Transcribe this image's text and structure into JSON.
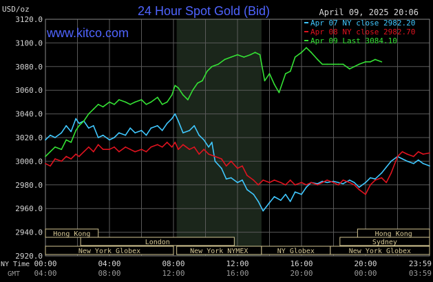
{
  "header": {
    "title": "24 Hour Spot Gold (Bid)",
    "unit": "USD/oz",
    "datetime": "April 09, 2025 20:06",
    "website": "www.kitco.com"
  },
  "colors": {
    "background": "#000000",
    "title": "#4f64ff",
    "website": "#4f64ff",
    "grid": "#5a5a5a",
    "text": "#d8d8d8",
    "apr07": "#40c8ff",
    "apr08": "#e0131f",
    "apr09": "#35e335",
    "session_shade": "#1b261b",
    "market_box": "#d6c895"
  },
  "chart_data": {
    "type": "line",
    "title": "24 Hour Spot Gold (Bid)",
    "ylabel": "USD/oz",
    "ylim": [
      2920,
      3120
    ],
    "y_ticks": [
      "3120.0",
      "3100.0",
      "3080.0",
      "3060.0",
      "3040.0",
      "3020.0",
      "3000.0",
      "2980.0",
      "2960.0",
      "2940.0",
      "2920.0"
    ],
    "y_tick_values": [
      3120,
      3100,
      3080,
      3060,
      3040,
      3020,
      3000,
      2980,
      2960,
      2940,
      2920
    ],
    "x_range_hours": [
      0,
      24
    ],
    "x_ticks_ny": [
      "00:00",
      "04:00",
      "08:00",
      "12:00",
      "16:00",
      "20:00",
      "23:59"
    ],
    "x_ticks_gmt": [
      "04:00",
      "08:00",
      "12:00",
      "16:00",
      "20:00",
      "00:00",
      "03:59"
    ],
    "x_tick_hours": [
      0,
      4,
      8,
      12,
      16,
      20,
      24
    ],
    "x_label_ny": "NY Time",
    "x_label_gmt": "GMT",
    "grid": true,
    "legend_position": "top-right",
    "shaded_session_hours": [
      8.2,
      13.5
    ],
    "series": [
      {
        "name": "Apr 07 NY close 2982.20",
        "color_key": "apr07",
        "points": [
          [
            0,
            3018
          ],
          [
            0.3,
            3022
          ],
          [
            0.6,
            3020
          ],
          [
            1,
            3024
          ],
          [
            1.3,
            3030
          ],
          [
            1.6,
            3025
          ],
          [
            1.9,
            3036
          ],
          [
            2.1,
            3032
          ],
          [
            2.4,
            3034
          ],
          [
            2.7,
            3028
          ],
          [
            3,
            3030
          ],
          [
            3.3,
            3020
          ],
          [
            3.6,
            3022
          ],
          [
            4,
            3018
          ],
          [
            4.3,
            3020
          ],
          [
            4.6,
            3024
          ],
          [
            5,
            3022
          ],
          [
            5.3,
            3028
          ],
          [
            5.6,
            3024
          ],
          [
            6,
            3026
          ],
          [
            6.3,
            3022
          ],
          [
            6.6,
            3028
          ],
          [
            7,
            3030
          ],
          [
            7.3,
            3026
          ],
          [
            7.6,
            3032
          ],
          [
            7.9,
            3036
          ],
          [
            8.1,
            3040
          ],
          [
            8.3,
            3034
          ],
          [
            8.6,
            3024
          ],
          [
            9,
            3026
          ],
          [
            9.3,
            3030
          ],
          [
            9.6,
            3022
          ],
          [
            9.9,
            3018
          ],
          [
            10.2,
            3012
          ],
          [
            10.4,
            3016
          ],
          [
            10.6,
            3000
          ],
          [
            11,
            2994
          ],
          [
            11.3,
            2985
          ],
          [
            11.6,
            2986
          ],
          [
            12,
            2982
          ],
          [
            12.3,
            2984
          ],
          [
            12.6,
            2976
          ],
          [
            13,
            2972
          ],
          [
            13.3,
            2966
          ],
          [
            13.6,
            2958
          ],
          [
            14,
            2965
          ],
          [
            14.3,
            2970
          ],
          [
            14.7,
            2967
          ],
          [
            15,
            2972
          ],
          [
            15.3,
            2966
          ],
          [
            15.6,
            2974
          ],
          [
            16,
            2972
          ],
          [
            16.3,
            2978
          ],
          [
            16.6,
            2982
          ],
          [
            17,
            2981
          ],
          [
            17.3,
            2983
          ],
          [
            17.6,
            2982
          ],
          [
            18,
            2983
          ],
          [
            18.3,
            2982
          ],
          [
            18.6,
            2981
          ],
          [
            19,
            2984
          ],
          [
            19.3,
            2982
          ],
          [
            19.6,
            2978
          ],
          [
            20,
            2982
          ],
          [
            20.3,
            2986
          ],
          [
            20.6,
            2985
          ],
          [
            21,
            2990
          ],
          [
            21.3,
            2995
          ],
          [
            21.6,
            3000
          ],
          [
            22,
            3004
          ],
          [
            22.3,
            3002
          ],
          [
            22.6,
            3000
          ],
          [
            23,
            2998
          ],
          [
            23.3,
            3001
          ],
          [
            23.6,
            2998
          ],
          [
            24,
            2996
          ]
        ]
      },
      {
        "name": "Apr 08 NY close 2982.70",
        "color_key": "apr08",
        "points": [
          [
            0,
            2998
          ],
          [
            0.3,
            2996
          ],
          [
            0.6,
            3002
          ],
          [
            1,
            3000
          ],
          [
            1.3,
            3004
          ],
          [
            1.6,
            3002
          ],
          [
            1.9,
            3006
          ],
          [
            2.1,
            3004
          ],
          [
            2.4,
            3008
          ],
          [
            2.7,
            3012
          ],
          [
            3,
            3008
          ],
          [
            3.3,
            3014
          ],
          [
            3.6,
            3010
          ],
          [
            4,
            3010
          ],
          [
            4.3,
            3012
          ],
          [
            4.6,
            3008
          ],
          [
            5,
            3012
          ],
          [
            5.3,
            3010
          ],
          [
            5.6,
            3008
          ],
          [
            6,
            3010
          ],
          [
            6.3,
            3008
          ],
          [
            6.6,
            3012
          ],
          [
            7,
            3014
          ],
          [
            7.3,
            3012
          ],
          [
            7.6,
            3016
          ],
          [
            7.9,
            3012
          ],
          [
            8.1,
            3016
          ],
          [
            8.3,
            3010
          ],
          [
            8.6,
            3014
          ],
          [
            9,
            3010
          ],
          [
            9.3,
            3012
          ],
          [
            9.6,
            3006
          ],
          [
            9.9,
            3010
          ],
          [
            10.2,
            3006
          ],
          [
            10.6,
            3004
          ],
          [
            11,
            3002
          ],
          [
            11.3,
            2996
          ],
          [
            11.6,
            3000
          ],
          [
            12,
            2994
          ],
          [
            12.3,
            2996
          ],
          [
            12.6,
            2988
          ],
          [
            13,
            2984
          ],
          [
            13.3,
            2980
          ],
          [
            13.6,
            2984
          ],
          [
            14,
            2982
          ],
          [
            14.3,
            2984
          ],
          [
            14.7,
            2982
          ],
          [
            15,
            2980
          ],
          [
            15.3,
            2984
          ],
          [
            15.6,
            2980
          ],
          [
            16,
            2982
          ],
          [
            16.3,
            2980
          ],
          [
            16.6,
            2982
          ],
          [
            17,
            2980
          ],
          [
            17.3,
            2982
          ],
          [
            17.6,
            2984
          ],
          [
            18,
            2982
          ],
          [
            18.3,
            2980
          ],
          [
            18.6,
            2984
          ],
          [
            19,
            2982
          ],
          [
            19.3,
            2980
          ],
          [
            19.6,
            2976
          ],
          [
            20,
            2972
          ],
          [
            20.3,
            2980
          ],
          [
            20.6,
            2984
          ],
          [
            21,
            2986
          ],
          [
            21.3,
            2982
          ],
          [
            21.6,
            2990
          ],
          [
            22,
            3004
          ],
          [
            22.3,
            3008
          ],
          [
            22.6,
            3006
          ],
          [
            23,
            3004
          ],
          [
            23.3,
            3008
          ],
          [
            23.6,
            3006
          ],
          [
            24,
            3007
          ]
        ]
      },
      {
        "name": "Apr 09 Last 3084.10",
        "color_key": "apr09",
        "points": [
          [
            0,
            3004
          ],
          [
            0.3,
            3008
          ],
          [
            0.6,
            3012
          ],
          [
            1,
            3010
          ],
          [
            1.3,
            3018
          ],
          [
            1.6,
            3016
          ],
          [
            1.9,
            3026
          ],
          [
            2.1,
            3030
          ],
          [
            2.4,
            3034
          ],
          [
            2.7,
            3040
          ],
          [
            3,
            3044
          ],
          [
            3.3,
            3048
          ],
          [
            3.6,
            3046
          ],
          [
            4,
            3050
          ],
          [
            4.3,
            3048
          ],
          [
            4.6,
            3052
          ],
          [
            5,
            3050
          ],
          [
            5.3,
            3048
          ],
          [
            5.6,
            3050
          ],
          [
            6,
            3052
          ],
          [
            6.3,
            3048
          ],
          [
            6.6,
            3050
          ],
          [
            7,
            3054
          ],
          [
            7.3,
            3048
          ],
          [
            7.6,
            3050
          ],
          [
            7.9,
            3056
          ],
          [
            8.1,
            3064
          ],
          [
            8.3,
            3062
          ],
          [
            8.6,
            3056
          ],
          [
            8.9,
            3052
          ],
          [
            9.2,
            3060
          ],
          [
            9.5,
            3066
          ],
          [
            9.8,
            3068
          ],
          [
            10.1,
            3076
          ],
          [
            10.4,
            3080
          ],
          [
            10.8,
            3082
          ],
          [
            11.2,
            3086
          ],
          [
            11.6,
            3088
          ],
          [
            12,
            3090
          ],
          [
            12.4,
            3088
          ],
          [
            12.8,
            3090
          ],
          [
            13.1,
            3092
          ],
          [
            13.4,
            3090
          ],
          [
            13.7,
            3068
          ],
          [
            14,
            3074
          ],
          [
            14.3,
            3065
          ],
          [
            14.6,
            3058
          ],
          [
            15,
            3074
          ],
          [
            15.3,
            3076
          ],
          [
            15.6,
            3088
          ],
          [
            16,
            3092
          ],
          [
            16.3,
            3096
          ],
          [
            16.6,
            3092
          ],
          [
            17,
            3086
          ],
          [
            17.3,
            3082
          ],
          [
            17.6,
            3082
          ],
          [
            18,
            3082
          ],
          [
            18.3,
            3082
          ],
          [
            18.6,
            3082
          ],
          [
            19,
            3078
          ],
          [
            19.3,
            3080
          ],
          [
            19.6,
            3082
          ],
          [
            20,
            3084
          ],
          [
            20.3,
            3084
          ],
          [
            20.6,
            3086
          ],
          [
            21,
            3084
          ]
        ]
      }
    ],
    "markets": [
      {
        "name": "Hong Kong",
        "start": 0,
        "end": 3.3,
        "row": 1
      },
      {
        "name": "London",
        "start": 2.2,
        "end": 11.8,
        "row": 2
      },
      {
        "name": "New York Globex",
        "start": 0,
        "end": 8.0,
        "row": 3
      },
      {
        "name": "New York NYMEX",
        "start": 8.2,
        "end": 13.5,
        "row": 3
      },
      {
        "name": "NY Globex",
        "start": 13.5,
        "end": 17.8,
        "row": 3
      },
      {
        "name": "Hong Kong",
        "start": 19.5,
        "end": 24,
        "row": 1
      },
      {
        "name": "Sydney",
        "start": 18.4,
        "end": 24,
        "row": 2
      },
      {
        "name": "New York Globex",
        "start": 17.8,
        "end": 24,
        "row": 3
      }
    ]
  }
}
